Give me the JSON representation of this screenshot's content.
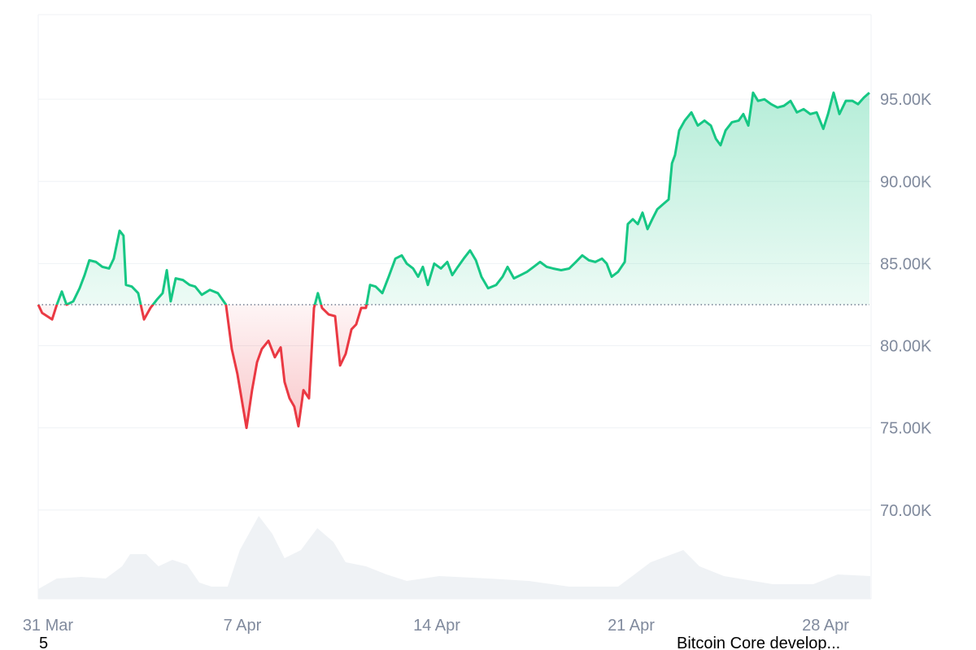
{
  "chart_data": {
    "type": "baseline-line",
    "xlim": [
      -0.35,
      29.64
    ],
    "xticks": [
      {
        "value": 0,
        "label": "31 Mar"
      },
      {
        "value": 7,
        "label": "7 Apr"
      },
      {
        "value": 14,
        "label": "14 Apr"
      },
      {
        "value": 21,
        "label": "21 Apr"
      },
      {
        "value": 28,
        "label": "28 Apr"
      }
    ],
    "ylim": [
      64600,
      100150
    ],
    "yticks": [
      {
        "value": 70000,
        "label": "70.00K"
      },
      {
        "value": 75000,
        "label": "75.00K"
      },
      {
        "value": 80000,
        "label": "80.00K"
      },
      {
        "value": 85000,
        "label": "85.00K"
      },
      {
        "value": 90000,
        "label": "90.00K"
      },
      {
        "value": 95000,
        "label": "95.00K"
      }
    ],
    "grid": true,
    "baseline": 82500,
    "up_color": "#16c784",
    "down_color": "#ea3943",
    "x": [
      -0.35,
      -0.21,
      -0.03,
      0.15,
      0.32,
      0.5,
      0.67,
      0.91,
      1.14,
      1.32,
      1.49,
      1.73,
      1.96,
      2.2,
      2.37,
      2.58,
      2.72,
      2.81,
      3.02,
      3.25,
      3.46,
      3.69,
      3.92,
      4.13,
      4.28,
      4.42,
      4.6,
      4.86,
      5.1,
      5.3,
      5.54,
      5.83,
      6.12,
      6.41,
      6.62,
      6.82,
      6.97,
      7.15,
      7.35,
      7.53,
      7.7,
      7.94,
      8.17,
      8.38,
      8.52,
      8.7,
      8.87,
      9.02,
      9.2,
      9.4,
      9.58,
      9.72,
      9.87,
      10.11,
      10.34,
      10.52,
      10.72,
      10.93,
      11.1,
      11.28,
      11.45,
      11.6,
      11.8,
      12.04,
      12.27,
      12.51,
      12.74,
      12.92,
      13.15,
      13.33,
      13.5,
      13.68,
      13.91,
      14.15,
      14.38,
      14.56,
      14.76,
      14.97,
      15.2,
      15.41,
      15.61,
      15.85,
      16.14,
      16.37,
      16.55,
      16.78,
      17.02,
      17.25,
      17.49,
      17.72,
      17.96,
      18.19,
      18.48,
      18.77,
      19.01,
      19.24,
      19.48,
      19.71,
      19.95,
      20.12,
      20.3,
      20.53,
      20.77,
      20.88,
      21.06,
      21.24,
      21.41,
      21.59,
      21.76,
      21.94,
      22.14,
      22.35,
      22.47,
      22.58,
      22.73,
      22.93,
      23.17,
      23.4,
      23.64,
      23.87,
      24.05,
      24.22,
      24.4,
      24.63,
      24.87,
      25.04,
      25.22,
      25.39,
      25.57,
      25.8,
      26.04,
      26.27,
      26.5,
      26.74,
      26.97,
      27.21,
      27.45,
      27.68,
      27.92,
      28.09,
      28.29,
      28.5,
      28.73,
      28.97,
      29.17,
      29.38,
      29.58
    ],
    "values": [
      82500,
      82000,
      81800,
      81600,
      82500,
      83300,
      82500,
      82700,
      83500,
      84300,
      85200,
      85100,
      84800,
      84700,
      85300,
      87000,
      86700,
      83700,
      83600,
      83200,
      81600,
      82300,
      82800,
      83200,
      84600,
      82700,
      84100,
      84000,
      83700,
      83600,
      83100,
      83400,
      83200,
      82500,
      79800,
      78300,
      76800,
      75000,
      77300,
      79000,
      79800,
      80300,
      79300,
      79900,
      77800,
      76800,
      76300,
      75100,
      77300,
      76800,
      82300,
      83200,
      82300,
      81900,
      81800,
      78800,
      79500,
      81000,
      81300,
      82300,
      82300,
      83700,
      83600,
      83200,
      84200,
      85300,
      85500,
      85000,
      84700,
      84200,
      84800,
      83700,
      85000,
      84700,
      85100,
      84300,
      84800,
      85300,
      85800,
      85200,
      84200,
      83500,
      83700,
      84200,
      84800,
      84100,
      84300,
      84500,
      84800,
      85100,
      84800,
      84700,
      84600,
      84700,
      85100,
      85500,
      85200,
      85100,
      85300,
      85000,
      84200,
      84500,
      85100,
      87400,
      87700,
      87400,
      88100,
      87100,
      87700,
      88300,
      88600,
      88900,
      91100,
      91600,
      93100,
      93700,
      94200,
      93400,
      93700,
      93400,
      92600,
      92200,
      93100,
      93600,
      93700,
      94100,
      93400,
      95400,
      94900,
      95000,
      94700,
      94500,
      94600,
      94900,
      94200,
      94400,
      94100,
      94200,
      93200,
      94100,
      95400,
      94100,
      94900,
      94900,
      94700,
      95100,
      95400
    ],
    "volume": {
      "color": "#eff2f5",
      "ylim": [
        0,
        120
      ],
      "x": [
        -0.35,
        0.32,
        1.2,
        2.08,
        2.67,
        2.96,
        3.54,
        3.98,
        4.48,
        5.01,
        5.45,
        5.89,
        6.47,
        6.91,
        7.59,
        8.08,
        8.52,
        9.11,
        9.7,
        10.28,
        10.72,
        11.45,
        12.19,
        12.92,
        14.09,
        15.85,
        17.31,
        18.77,
        20.53,
        21.12,
        21.7,
        22.88,
        23.46,
        24.34,
        26.1,
        27.56,
        28.44,
        29.61
      ],
      "values": [
        12,
        25,
        27,
        25,
        40,
        55,
        55,
        40,
        48,
        42,
        20,
        15,
        15,
        60,
        102,
        80,
        50,
        60,
        87,
        70,
        45,
        40,
        30,
        22,
        28,
        25,
        22,
        15,
        15,
        30,
        45,
        60,
        40,
        28,
        18,
        18,
        30,
        28
      ]
    },
    "annotations": [
      "5",
      "Bitcoin Core develop..."
    ]
  }
}
